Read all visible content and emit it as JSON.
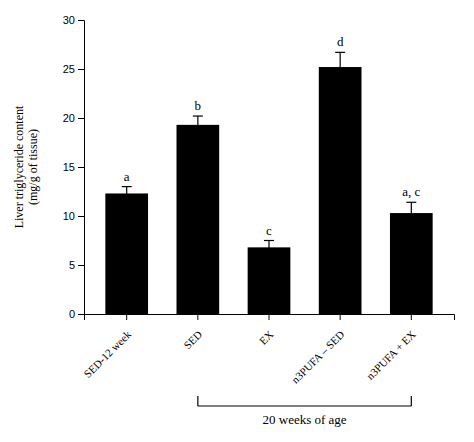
{
  "chart_data": {
    "type": "bar",
    "categories": [
      "SED-12 week",
      "SED",
      "EX",
      "n3PUFA – SED",
      "n3PUFA + EX"
    ],
    "values": [
      12.3,
      19.3,
      6.8,
      25.2,
      10.3
    ],
    "errors": [
      0.7,
      0.9,
      0.7,
      1.5,
      1.1
    ],
    "color": "#000000",
    "ylabel": [
      "Liver triglyceride content",
      "(mg/g of tissue)"
    ],
    "ylim": [
      0,
      30
    ],
    "yticks": [
      0,
      5,
      10,
      15,
      20,
      25,
      30
    ],
    "annotations": [
      {
        "text": "a",
        "category": "SED-12 week"
      },
      {
        "text": "b",
        "category": "SED"
      },
      {
        "text": "c",
        "category": "EX"
      },
      {
        "text": "d",
        "category": "n3PUFA – SED"
      },
      {
        "text": "a, c",
        "category": "n3PUFA + EX"
      },
      {
        "text": "20 weeks of age",
        "from": "SED",
        "to": "n3PUFA + EX"
      }
    ]
  }
}
